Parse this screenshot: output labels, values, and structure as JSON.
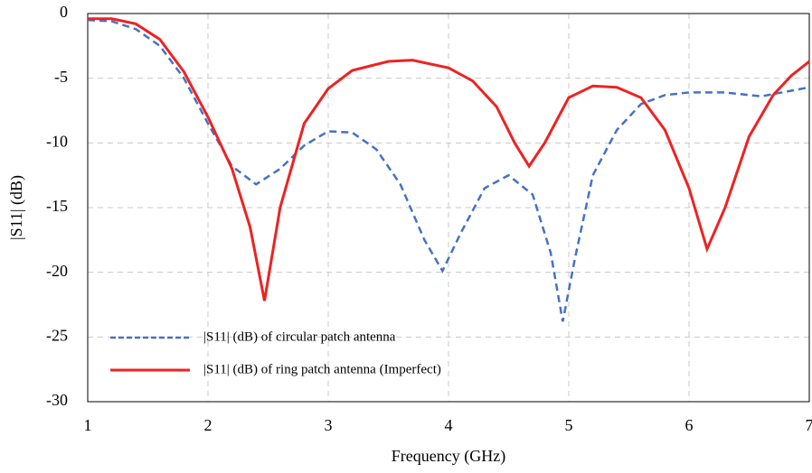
{
  "chart_data": {
    "type": "line",
    "xlabel": "Frequency (GHz)",
    "ylabel": "|S11| (dB)",
    "xlim": [
      1,
      7
    ],
    "xticks": [
      1,
      2,
      3,
      4,
      5,
      6,
      7
    ],
    "ylim": [
      -30,
      0
    ],
    "yticks": [
      -30,
      -25,
      -20,
      -15,
      -10,
      -5,
      0
    ],
    "grid": true,
    "legend": "lower left",
    "series": [
      {
        "name": "|S11| (dB) of circular patch antenna",
        "color": "#4472c4",
        "dash": true,
        "x": [
          1.0,
          1.2,
          1.4,
          1.6,
          1.8,
          2.0,
          2.2,
          2.4,
          2.6,
          2.8,
          3.0,
          3.2,
          3.4,
          3.6,
          3.8,
          3.95,
          4.1,
          4.3,
          4.5,
          4.7,
          4.85,
          4.95,
          5.05,
          5.2,
          5.4,
          5.6,
          5.8,
          6.0,
          6.3,
          6.6,
          7.0
        ],
        "values": [
          -0.5,
          -0.6,
          -1.2,
          -2.5,
          -5,
          -8.5,
          -11.8,
          -13.2,
          -12,
          -10.2,
          -9.1,
          -9.2,
          -10.5,
          -13.2,
          -17.5,
          -19.9,
          -17,
          -13.5,
          -12.5,
          -14,
          -18.5,
          -23.8,
          -19,
          -12.5,
          -9,
          -7,
          -6.3,
          -6.1,
          -6.1,
          -6.4,
          -5.7
        ]
      },
      {
        "name": "|S11| (dB) of ring patch antenna (Imperfect)",
        "color": "#ee2222",
        "dash": false,
        "x": [
          1.0,
          1.2,
          1.4,
          1.6,
          1.8,
          2.0,
          2.2,
          2.35,
          2.47,
          2.6,
          2.8,
          3.0,
          3.2,
          3.5,
          3.7,
          4.0,
          4.2,
          4.4,
          4.55,
          4.67,
          4.8,
          5.0,
          5.2,
          5.4,
          5.6,
          5.8,
          6.0,
          6.15,
          6.3,
          6.5,
          6.7,
          6.85,
          7.0
        ],
        "values": [
          -0.4,
          -0.4,
          -0.8,
          -2,
          -4.5,
          -8,
          -12,
          -16.5,
          -22.2,
          -15,
          -8.5,
          -5.8,
          -4.4,
          -3.7,
          -3.6,
          -4.2,
          -5.2,
          -7.2,
          -10,
          -11.8,
          -10,
          -6.5,
          -5.6,
          -5.7,
          -6.5,
          -9,
          -13.5,
          -18.2,
          -15,
          -9.5,
          -6.3,
          -4.8,
          -3.7
        ]
      }
    ]
  }
}
